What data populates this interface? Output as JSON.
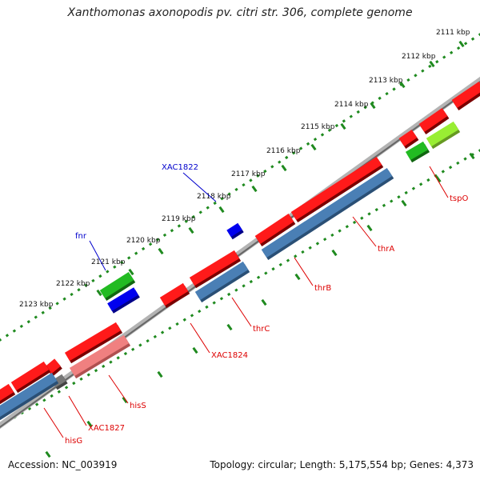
{
  "title": "Xanthomonas axonopodis pv. citri str. 306, complete genome",
  "footer": {
    "accession": "Accession: NC_003919",
    "summary": "Topology: circular; Length: 5,175,554 bp; Genes: 4,373"
  },
  "ticks": [
    "2111 kbp",
    "2112 kbp",
    "2113 kbp",
    "2114 kbp",
    "2115 kbp",
    "2116 kbp",
    "2117 kbp",
    "2118 kbp",
    "2119 kbp",
    "2120 kbp",
    "2121 kbp",
    "2122 kbp",
    "2123 kbp"
  ],
  "colors": {
    "forward_gene": "#ff1a1a",
    "forward_gene_light": "#f08080",
    "reverse_gene": "#22bb22",
    "reverse_gene_light": "#99ee33",
    "highlight_gene": "#0000ee",
    "cds": "#4a7fb5",
    "backbone": "#888888",
    "tick_track": "#1f8a1f",
    "red_label": "#dd0000",
    "blue_label": "#0000cc"
  },
  "gene_labels": [
    {
      "text": "XAC1822",
      "color": "blue"
    },
    {
      "text": "fnr",
      "color": "blue"
    },
    {
      "text": "tspO",
      "color": "red"
    },
    {
      "text": "thrA",
      "color": "red"
    },
    {
      "text": "thrB",
      "color": "red"
    },
    {
      "text": "thrC",
      "color": "red"
    },
    {
      "text": "XAC1824",
      "color": "red"
    },
    {
      "text": "hisS",
      "color": "red"
    },
    {
      "text": "XAC1827",
      "color": "red"
    },
    {
      "text": "hisG",
      "color": "red"
    }
  ]
}
